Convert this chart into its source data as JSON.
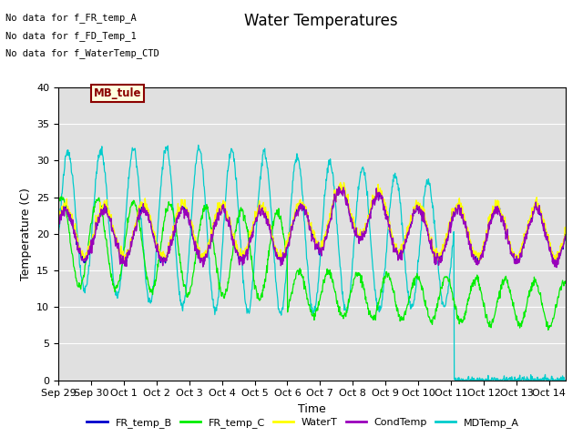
{
  "title": "Water Temperatures",
  "xlabel": "Time",
  "ylabel": "Temperature (C)",
  "ylim": [
    0,
    40
  ],
  "bg_color": "#e0e0e0",
  "annotations": [
    "No data for f_FR_temp_A",
    "No data for f_FD_Temp_1",
    "No data for f_WaterTemp_CTD"
  ],
  "mb_tule_label": "MB_tule",
  "xtick_labels": [
    "Sep 29",
    "Sep 30",
    "Oct 1",
    "Oct 2",
    "Oct 3",
    "Oct 4",
    "Oct 5",
    "Oct 6",
    "Oct 7",
    "Oct 8",
    "Oct 9",
    "Oct 10",
    "Oct 11",
    "Oct 12",
    "Oct 13",
    "Oct 14"
  ],
  "yticks": [
    0,
    5,
    10,
    15,
    20,
    25,
    30,
    35,
    40
  ],
  "colors": {
    "FR_temp_B": "#0000cc",
    "FR_temp_C": "#00ee00",
    "WaterT": "#ffff00",
    "CondTemp": "#9900bb",
    "MDTemp_A": "#00cccc"
  },
  "title_fontsize": 12,
  "axis_fontsize": 9,
  "tick_fontsize": 8,
  "legend_fontsize": 8
}
